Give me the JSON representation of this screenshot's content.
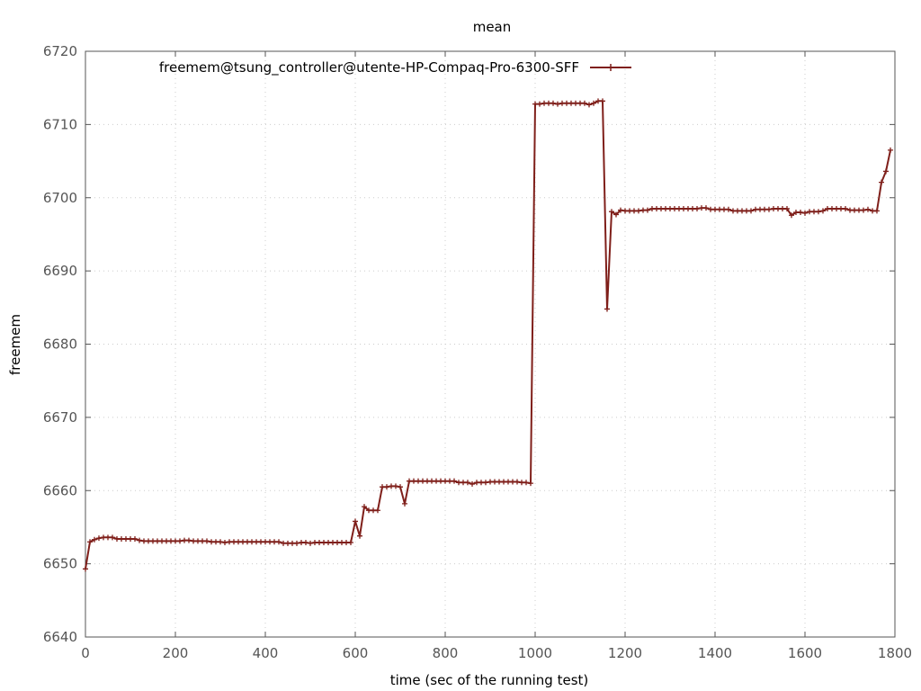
{
  "chart_data": {
    "type": "line",
    "title": "mean",
    "xlabel": "time (sec of the running test)",
    "ylabel": "freemem",
    "xlim": [
      0,
      1800
    ],
    "ylim": [
      6640,
      6720
    ],
    "xticks": [
      0,
      200,
      400,
      600,
      800,
      1000,
      1200,
      1400,
      1600,
      1800
    ],
    "yticks": [
      6640,
      6650,
      6660,
      6670,
      6680,
      6690,
      6700,
      6710,
      6720
    ],
    "grid": true,
    "legend_position": "top-left",
    "series": [
      {
        "name": "freemem@tsung_controller@utente-HP-Compaq-Pro-6300-SFF",
        "color": "#7f1f1a",
        "marker": "plus",
        "x": [
          0,
          10,
          20,
          30,
          40,
          50,
          60,
          70,
          80,
          90,
          100,
          110,
          120,
          130,
          140,
          150,
          160,
          170,
          180,
          190,
          200,
          210,
          220,
          230,
          240,
          250,
          260,
          270,
          280,
          290,
          300,
          310,
          320,
          330,
          340,
          350,
          360,
          370,
          380,
          390,
          400,
          410,
          420,
          430,
          440,
          450,
          460,
          470,
          480,
          490,
          500,
          510,
          520,
          530,
          540,
          550,
          560,
          570,
          580,
          590,
          600,
          610,
          620,
          630,
          640,
          650,
          660,
          670,
          680,
          690,
          700,
          710,
          720,
          730,
          740,
          750,
          760,
          770,
          780,
          790,
          800,
          810,
          820,
          830,
          840,
          850,
          860,
          870,
          880,
          890,
          900,
          910,
          920,
          930,
          940,
          950,
          960,
          970,
          980,
          990,
          1000,
          1010,
          1020,
          1030,
          1040,
          1050,
          1060,
          1070,
          1080,
          1090,
          1100,
          1110,
          1120,
          1130,
          1140,
          1150,
          1160,
          1170,
          1180,
          1190,
          1200,
          1210,
          1220,
          1230,
          1240,
          1250,
          1260,
          1270,
          1280,
          1290,
          1300,
          1310,
          1320,
          1330,
          1340,
          1350,
          1360,
          1370,
          1380,
          1390,
          1400,
          1410,
          1420,
          1430,
          1440,
          1450,
          1460,
          1470,
          1480,
          1490,
          1500,
          1510,
          1520,
          1530,
          1540,
          1550,
          1560,
          1570,
          1580,
          1590,
          1600,
          1610,
          1620,
          1630,
          1640,
          1650,
          1660,
          1670,
          1680,
          1690,
          1700,
          1710,
          1720,
          1730,
          1740,
          1750,
          1760,
          1770,
          1780,
          1790
        ],
        "y": [
          6649.3,
          6653.0,
          6653.3,
          6653.5,
          6653.6,
          6653.6,
          6653.6,
          6653.4,
          6653.4,
          6653.4,
          6653.4,
          6653.4,
          6653.2,
          6653.1,
          6653.1,
          6653.1,
          6653.1,
          6653.1,
          6653.1,
          6653.1,
          6653.1,
          6653.1,
          6653.2,
          6653.2,
          6653.1,
          6653.1,
          6653.1,
          6653.1,
          6653.0,
          6653.0,
          6653.0,
          6652.9,
          6653.0,
          6653.0,
          6653.0,
          6653.0,
          6653.0,
          6653.0,
          6653.0,
          6653.0,
          6653.0,
          6653.0,
          6653.0,
          6653.0,
          6652.8,
          6652.8,
          6652.8,
          6652.8,
          6652.9,
          6652.9,
          6652.8,
          6652.9,
          6652.9,
          6652.9,
          6652.9,
          6652.9,
          6652.9,
          6652.9,
          6652.9,
          6652.9,
          6655.8,
          6653.8,
          6657.8,
          6657.3,
          6657.3,
          6657.3,
          6660.5,
          6660.5,
          6660.6,
          6660.6,
          6660.5,
          6658.2,
          6661.3,
          6661.3,
          6661.3,
          6661.3,
          6661.3,
          6661.3,
          6661.3,
          6661.3,
          6661.3,
          6661.3,
          6661.3,
          6661.1,
          6661.1,
          6661.1,
          6660.9,
          6661.1,
          6661.1,
          6661.1,
          6661.2,
          6661.2,
          6661.2,
          6661.2,
          6661.2,
          6661.2,
          6661.2,
          6661.1,
          6661.1,
          6661.0,
          6712.8,
          6712.8,
          6712.9,
          6712.9,
          6712.9,
          6712.8,
          6712.9,
          6712.9,
          6712.9,
          6712.9,
          6712.9,
          6712.9,
          6712.7,
          6712.9,
          6713.2,
          6713.2,
          6684.8,
          6698.1,
          6697.7,
          6698.3,
          6698.2,
          6698.2,
          6698.2,
          6698.2,
          6698.3,
          6698.3,
          6698.5,
          6698.5,
          6698.5,
          6698.5,
          6698.5,
          6698.5,
          6698.5,
          6698.5,
          6698.5,
          6698.5,
          6698.5,
          6698.6,
          6698.6,
          6698.4,
          6698.4,
          6698.4,
          6698.4,
          6698.4,
          6698.2,
          6698.2,
          6698.2,
          6698.2,
          6698.2,
          6698.4,
          6698.4,
          6698.4,
          6698.4,
          6698.5,
          6698.5,
          6698.5,
          6698.5,
          6697.6,
          6698.0,
          6698.0,
          6697.9,
          6698.1,
          6698.1,
          6698.1,
          6698.2,
          6698.5,
          6698.5,
          6698.5,
          6698.5,
          6698.5,
          6698.3,
          6698.3,
          6698.3,
          6698.3,
          6698.4,
          6698.2,
          6698.2,
          6702.1,
          6703.6,
          6706.5
        ]
      }
    ]
  }
}
